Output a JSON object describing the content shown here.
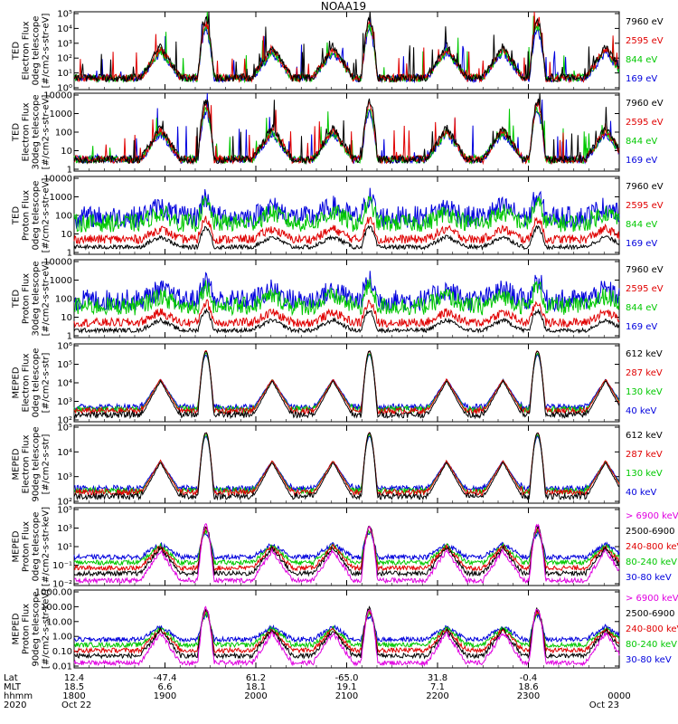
{
  "chart_data": {
    "type": "line",
    "title": "NOAA19",
    "x_axis": {
      "rows": [
        {
          "label": "Lat",
          "values": [
            "12.4",
            "-47.4",
            "61.2",
            "-65.0",
            "31.8",
            "-0.4"
          ]
        },
        {
          "label": "MLT",
          "values": [
            "18.5",
            "6.6",
            "18.1",
            "19.1",
            "7.1",
            "18.6"
          ]
        },
        {
          "label": "hhmm",
          "values": [
            "1800",
            "1900",
            "2000",
            "2100",
            "2200",
            "2300",
            "0000"
          ]
        },
        {
          "label": "2020",
          "values": [
            "Oct 22",
            "Oct 23"
          ]
        }
      ],
      "major_hours": [
        18,
        19,
        20,
        21,
        22,
        23,
        24
      ],
      "range_hours": [
        18,
        24
      ]
    },
    "passes": [
      {
        "center": 18.95,
        "type": "polar"
      },
      {
        "center": 19.45,
        "type": "high"
      },
      {
        "center": 20.18,
        "type": "polar"
      },
      {
        "center": 20.85,
        "type": "polar"
      },
      {
        "center": 21.25,
        "type": "high"
      },
      {
        "center": 22.1,
        "type": "polar"
      },
      {
        "center": 22.72,
        "type": "polar"
      },
      {
        "center": 23.1,
        "type": "high"
      },
      {
        "center": 23.85,
        "type": "polar"
      }
    ],
    "panels": [
      {
        "ylabel": [
          "TED",
          "Electron Flux",
          "0deg telescope",
          "[#/cm2-s-str-eV]"
        ],
        "yticks": [
          "10⁰",
          "10¹",
          "10²",
          "10³",
          "10⁴",
          "10⁵"
        ],
        "ylog": [
          0,
          5
        ],
        "legend": [
          {
            "label": "7960 eV",
            "color": "#000000"
          },
          {
            "label": "2595 eV",
            "color": "#e00000"
          },
          {
            "label": "844 eV",
            "color": "#00c800"
          },
          {
            "label": "169 eV",
            "color": "#0000dd"
          }
        ]
      },
      {
        "ylabel": [
          "TED",
          "Electron Flux",
          "30deg telescope",
          "[#/cm2-s-str-eV]"
        ],
        "yticks": [
          "1",
          "10",
          "100",
          "1000",
          "10000"
        ],
        "ylog": [
          0,
          4.2
        ],
        "legend": [
          {
            "label": "7960 eV",
            "color": "#000000"
          },
          {
            "label": "2595 eV",
            "color": "#e00000"
          },
          {
            "label": "844 eV",
            "color": "#00c800"
          },
          {
            "label": "169 eV",
            "color": "#0000dd"
          }
        ]
      },
      {
        "ylabel": [
          "TED",
          "Proton Flux",
          "0deg telescope",
          "[#/cm2-s-str-eV]"
        ],
        "yticks": [
          "1",
          "10",
          "100",
          "1000",
          "10000"
        ],
        "ylog": [
          0,
          4.2
        ],
        "legend": [
          {
            "label": "7960 eV",
            "color": "#000000"
          },
          {
            "label": "2595 eV",
            "color": "#e00000"
          },
          {
            "label": "844 eV",
            "color": "#00c800"
          },
          {
            "label": "169 eV",
            "color": "#0000dd"
          }
        ]
      },
      {
        "ylabel": [
          "TED",
          "Proton Flux",
          "30deg telescope",
          "[#/cm2-s-str-eV]"
        ],
        "yticks": [
          "1",
          "10",
          "100",
          "1000",
          "10000"
        ],
        "ylog": [
          0,
          4.2
        ],
        "legend": [
          {
            "label": "7960 eV",
            "color": "#000000"
          },
          {
            "label": "2595 eV",
            "color": "#e00000"
          },
          {
            "label": "844 eV",
            "color": "#00c800"
          },
          {
            "label": "169 eV",
            "color": "#0000dd"
          }
        ]
      },
      {
        "ylabel": [
          "MEPED",
          "Electron Flux",
          "0deg telescope",
          "[#/cm2-s-str]"
        ],
        "yticks": [
          "10²",
          "10³",
          "10⁴",
          "10⁵",
          "10⁶"
        ],
        "ylog": [
          1.8,
          6.2
        ],
        "legend": [
          {
            "label": "612 keV",
            "color": "#000000"
          },
          {
            "label": "287 keV",
            "color": "#e00000"
          },
          {
            "label": "130 keV",
            "color": "#00c800"
          },
          {
            "label": "40 keV",
            "color": "#0000dd"
          }
        ]
      },
      {
        "ylabel": [
          "MEPED",
          "Electron Flux",
          "90deg telescope",
          "[#/cm2-s-str]"
        ],
        "yticks": [
          "10²",
          "10³",
          "10⁴",
          "10⁵"
        ],
        "ylog": [
          1.8,
          5.8
        ],
        "legend": [
          {
            "label": "612 keV",
            "color": "#000000"
          },
          {
            "label": "287 keV",
            "color": "#e00000"
          },
          {
            "label": "130 keV",
            "color": "#00c800"
          },
          {
            "label": "40 keV",
            "color": "#0000dd"
          }
        ]
      },
      {
        "ylabel": [
          "MEPED",
          "Proton Flux",
          "0deg telescope",
          "[#/cm2-s-str-keV]"
        ],
        "yticks": [
          "10⁻²",
          "10⁻¹",
          "10¹",
          "10³",
          "10⁵"
        ],
        "ylog": [
          -2,
          5.5
        ],
        "legend": [
          {
            "label": "> 6900 keV",
            "color": "#e000e0"
          },
          {
            "label": "2500-6900",
            "color": "#000000"
          },
          {
            "label": "240-800 keV",
            "color": "#e00000"
          },
          {
            "label": "80-240 keV",
            "color": "#00c800"
          },
          {
            "label": "30-80 keV",
            "color": "#0000dd"
          }
        ]
      },
      {
        "ylabel": [
          "MEPED",
          "Proton Flux",
          "90deg telescope",
          "[#/cm2-s-str-keV]"
        ],
        "yticks": [
          "0.01",
          "0.10",
          "1.00",
          "10.00",
          "100.00",
          "1000.00"
        ],
        "ylog": [
          -2.2,
          3.2
        ],
        "legend": [
          {
            "label": "> 6900 keV",
            "color": "#e000e0"
          },
          {
            "label": "2500-6900",
            "color": "#000000"
          },
          {
            "label": "240-800 keV",
            "color": "#e00000"
          },
          {
            "label": "80-240 keV",
            "color": "#00c800"
          },
          {
            "label": "30-80 keV",
            "color": "#0000dd"
          }
        ]
      }
    ]
  }
}
